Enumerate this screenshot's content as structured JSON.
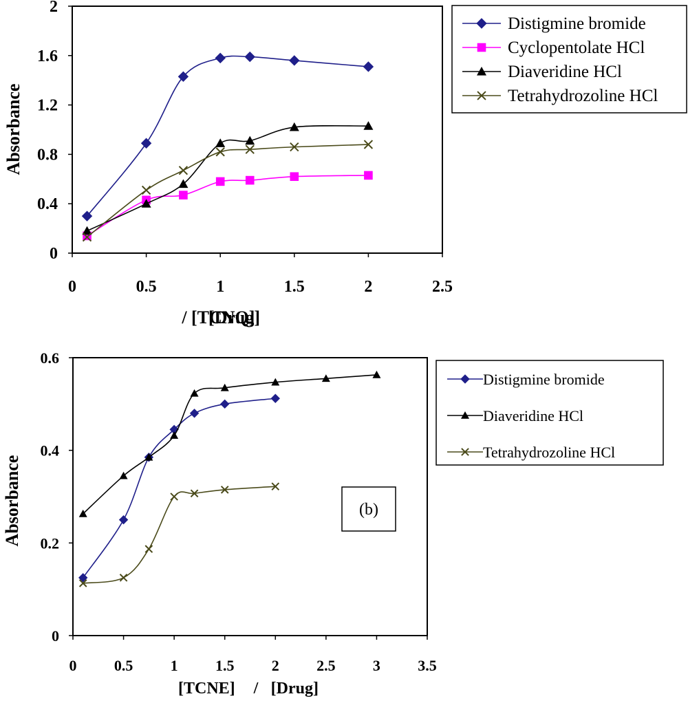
{
  "chart_data": [
    {
      "type": "line",
      "xlabel_parts": [
        "[TCNQ]",
        "/",
        "[Drug]"
      ],
      "ylabel": "Absorbance",
      "xlim": [
        0,
        2.5
      ],
      "ylim": [
        0,
        2
      ],
      "xticks": [
        "0",
        "0.5",
        "1",
        "1.5",
        "2",
        "2.5"
      ],
      "xtick_values": [
        0,
        0.5,
        1,
        1.5,
        2,
        2.5
      ],
      "yticks": [
        "0",
        "0.4",
        "0.8",
        "1.2",
        "1.6",
        "2"
      ],
      "ytick_values": [
        0,
        0.4,
        0.8,
        1.2,
        1.6,
        2
      ],
      "grid": false,
      "legend_position": "top-right",
      "series": [
        {
          "name": "Distigmine bromide",
          "marker": "diamond",
          "color": "#1f1f8a",
          "x": [
            0.1,
            0.5,
            0.75,
            1,
            1.2,
            1.5,
            2
          ],
          "y": [
            0.3,
            0.89,
            1.43,
            1.58,
            1.59,
            1.56,
            1.51
          ]
        },
        {
          "name": "Cyclopentolate HCl",
          "marker": "square",
          "color": "#ff00ff",
          "x": [
            0.1,
            0.5,
            0.75,
            1,
            1.2,
            1.5,
            2
          ],
          "y": [
            0.14,
            0.43,
            0.47,
            0.58,
            0.59,
            0.62,
            0.63
          ]
        },
        {
          "name": "Diaveridine HCl",
          "marker": "triangle",
          "color": "#000000",
          "x": [
            0.1,
            0.5,
            0.75,
            1,
            1.2,
            1.5,
            2
          ],
          "y": [
            0.18,
            0.4,
            0.56,
            0.89,
            0.91,
            1.02,
            1.03
          ]
        },
        {
          "name": "Tetrahydrozoline HCl",
          "marker": "x",
          "color": "#4a4a1a",
          "x": [
            0.1,
            0.5,
            0.75,
            1,
            1.2,
            1.5,
            2
          ],
          "y": [
            0.13,
            0.51,
            0.67,
            0.82,
            0.84,
            0.86,
            0.88
          ]
        }
      ]
    },
    {
      "type": "line",
      "xlabel_parts": [
        "[TCNE]",
        "/",
        "[Drug]"
      ],
      "ylabel": "Absorbance",
      "panel_label": "(b)",
      "xlim": [
        0,
        3.5
      ],
      "ylim": [
        0,
        0.6
      ],
      "xticks": [
        "0",
        "0.5",
        "1",
        "1.5",
        "2",
        "2.5",
        "3",
        "3.5"
      ],
      "xtick_values": [
        0,
        0.5,
        1,
        1.5,
        2,
        2.5,
        3,
        3.5
      ],
      "yticks": [
        "0",
        "0.2",
        "0.4",
        "0.6"
      ],
      "ytick_values": [
        0,
        0.2,
        0.4,
        0.6
      ],
      "grid": false,
      "legend_position": "right",
      "series": [
        {
          "name": "Distigmine bromide",
          "marker": "diamond",
          "color": "#1f1f8a",
          "x": [
            0.1,
            0.5,
            0.75,
            1,
            1.2,
            1.5,
            2
          ],
          "y": [
            0.125,
            0.25,
            0.385,
            0.445,
            0.48,
            0.5,
            0.512
          ]
        },
        {
          "name": "Diaveridine HCl",
          "marker": "triangle",
          "color": "#000000",
          "x": [
            0.1,
            0.5,
            0.75,
            1,
            1.2,
            1.5,
            2,
            2.5,
            3
          ],
          "y": [
            0.263,
            0.345,
            0.385,
            0.432,
            0.523,
            0.535,
            0.547,
            0.555,
            0.563
          ]
        },
        {
          "name": "Tetrahydrozoline HCl",
          "marker": "x",
          "color": "#4a4a1a",
          "x": [
            0.1,
            0.5,
            0.75,
            1,
            1.2,
            1.5,
            2
          ],
          "y": [
            0.113,
            0.125,
            0.187,
            0.3,
            0.307,
            0.315,
            0.322
          ]
        }
      ]
    }
  ]
}
